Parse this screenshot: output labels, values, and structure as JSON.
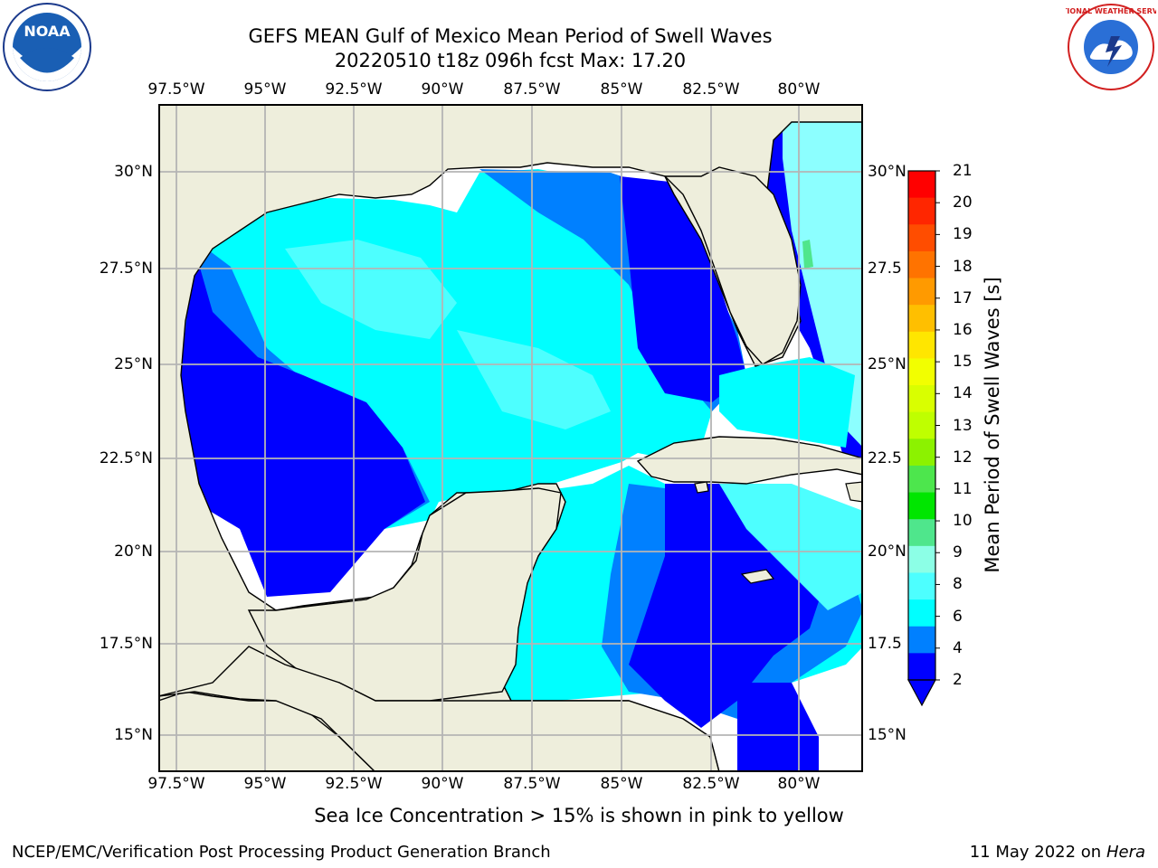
{
  "title": {
    "line1": "GEFS MEAN Gulf of Mexico Mean Period of Swell Waves",
    "line2": "20220510 t18z 096h fcst   Max: 17.20"
  },
  "logos": {
    "left": "NOAA",
    "right": "NATIONAL WEATHER SERVICE"
  },
  "lon_labels": [
    "97.5°W",
    "95°W",
    "92.5°W",
    "90°W",
    "87.5°W",
    "85°W",
    "82.5°W",
    "80°W"
  ],
  "lat_labels_left": [
    "30°N",
    "27.5°N",
    "25°N",
    "22.5°N",
    "20°N",
    "17.5°N",
    "15°N"
  ],
  "lat_labels_right": [
    "30°N",
    "27.5",
    "25°N",
    "22.5",
    "20°N",
    "17.5",
    "15°N"
  ],
  "colorbar": {
    "label": "Mean Period of Swell Waves [s]",
    "ticks": [
      "21",
      "20",
      "19",
      "18",
      "17",
      "16",
      "15",
      "14",
      "13",
      "12",
      "11",
      "10",
      "9",
      "8",
      "6",
      "4",
      "2"
    ],
    "colors": [
      "#ff0000",
      "#ff2600",
      "#ff4d00",
      "#ff7300",
      "#ff9a00",
      "#ffbf00",
      "#ffe600",
      "#f2ff00",
      "#d9ff00",
      "#bfff00",
      "#8cf200",
      "#4de64d",
      "#00e600",
      "#4fe68c",
      "#8cffe6",
      "#4dffff",
      "#00ffff",
      "#0080ff",
      "#0000ff"
    ],
    "extend_color": "#0000ff"
  },
  "caption": "Sea Ice Concentration > 15% is shown in pink to yellow",
  "footer": {
    "left": "NCEP/EMC/Verification Post Processing Product Generation Branch",
    "date": "11 May 2022 on",
    "machine": "Hera"
  },
  "colors": {
    "land": "#eeeedc",
    "coast": "#000000",
    "grid": "#b4b4b4",
    "period_2_4": "#0000ff",
    "period_4_6": "#0080ff",
    "period_6_7": "#00ffff",
    "period_7_8": "#4dffff",
    "period_8_9": "#8cffff",
    "period_9_10": "#4fe68c",
    "period_10_11": "#00e600",
    "period_12_13": "#bfff00",
    "period_14_15": "#f2ff00",
    "period_16_17": "#ffbf00"
  }
}
